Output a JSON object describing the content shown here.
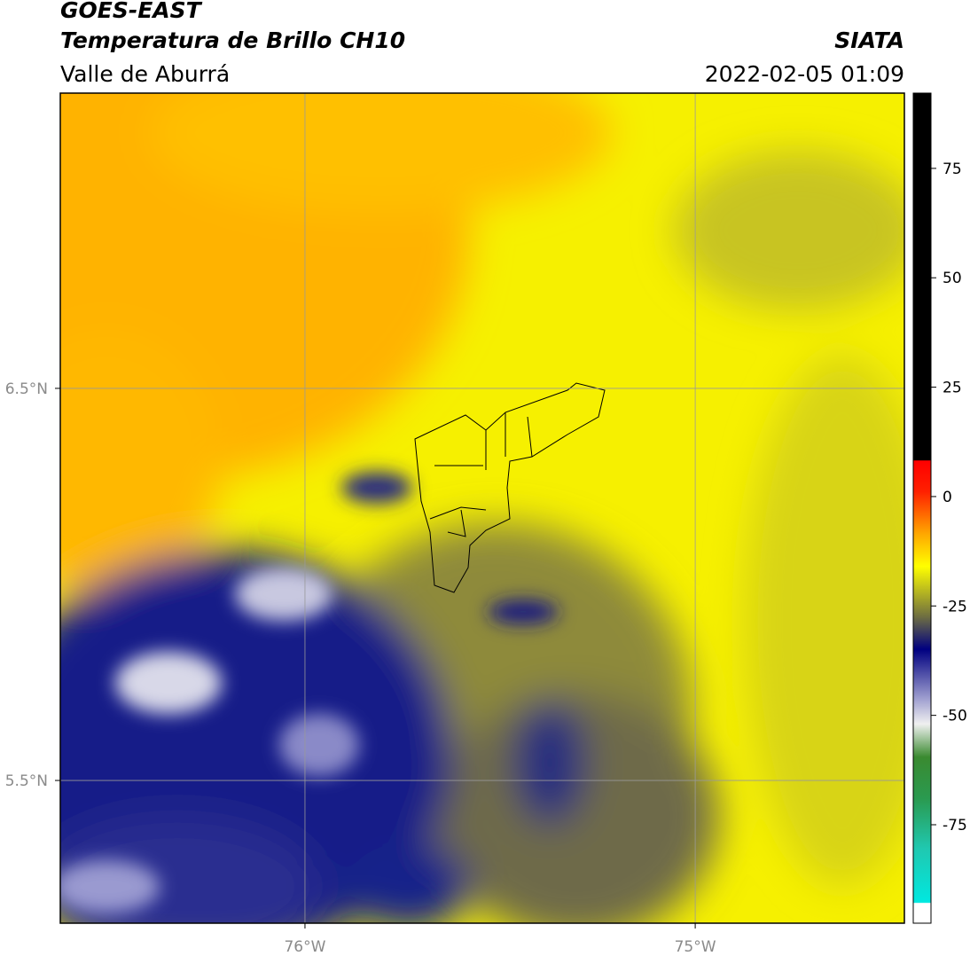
{
  "header": {
    "title": "GOES-EAST",
    "subtitle": "Temperatura de Brillo CH10",
    "source": "SIATA",
    "region": "Valle de Aburrá",
    "datetime": "2022-02-05 01:09"
  },
  "map": {
    "lonlim": [
      -76.627,
      -74.464
    ],
    "latlim": [
      5.136,
      7.253
    ],
    "lonticks": [
      {
        "value": -76,
        "label": "76°W"
      },
      {
        "value": -75,
        "label": "75°W"
      }
    ],
    "latticks": [
      {
        "value": 6.5,
        "label": "6.5°N"
      },
      {
        "value": 5.5,
        "label": "5.5°N"
      }
    ],
    "grid": true
  },
  "colorbar": {
    "lim": [
      -97.5,
      92.2
    ],
    "ticks": [
      75,
      50,
      25,
      0,
      -25,
      -50,
      -75
    ]
  }
}
